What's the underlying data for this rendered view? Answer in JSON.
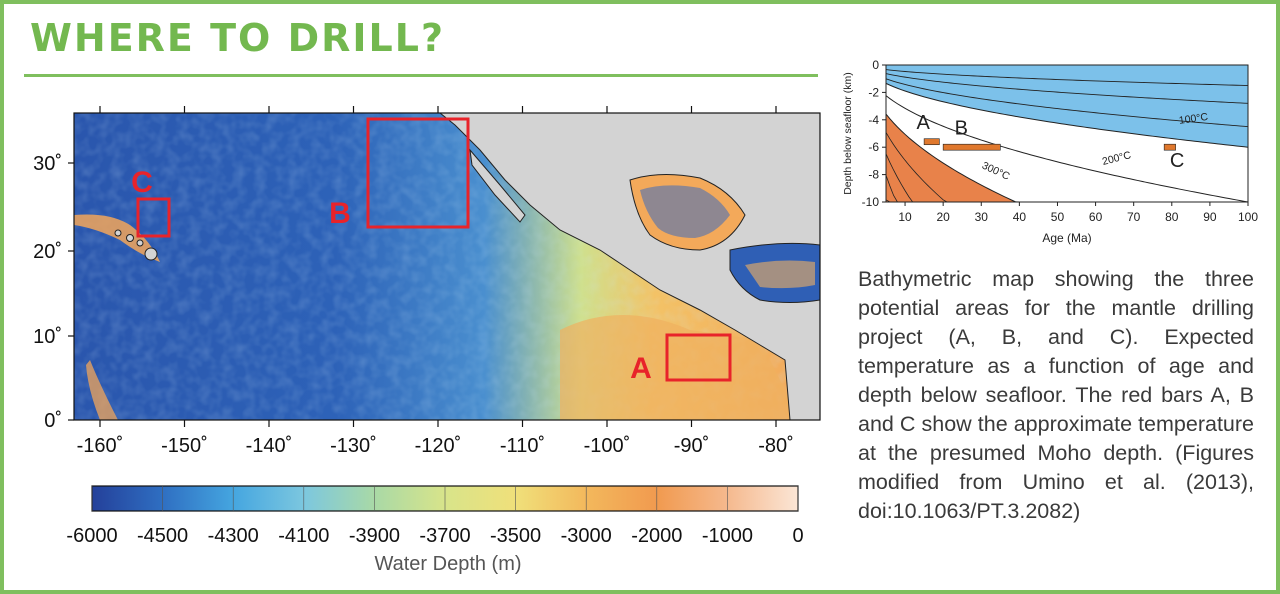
{
  "header": {
    "title": "WHERE TO DRILL?"
  },
  "map": {
    "lat_ticks": [
      "0˚",
      "10˚",
      "20˚",
      "30˚"
    ],
    "lon_ticks": [
      "-160˚",
      "-150˚",
      "-140˚",
      "-130˚",
      "-120˚",
      "-110˚",
      "-100˚",
      "-90˚",
      "-80˚"
    ],
    "sites": [
      {
        "label": "A",
        "color": "#e8232a"
      },
      {
        "label": "B",
        "color": "#e8232a"
      },
      {
        "label": "C",
        "color": "#e8232a"
      }
    ],
    "colorbar": {
      "ticks": [
        "-6000",
        "-4500",
        "-4300",
        "-4100",
        "-3900",
        "-3700",
        "-3500",
        "-3000",
        "-2000",
        "-1000",
        "0"
      ],
      "label": "Water Depth (m)",
      "colors": [
        "#24409a",
        "#2f6fc2",
        "#45a6e0",
        "#7cc7df",
        "#a9d9a6",
        "#d8e48a",
        "#f0e07a",
        "#f3b85c",
        "#f19a4f",
        "#f5b98e",
        "#fbe6d6"
      ]
    }
  },
  "chart_data": {
    "type": "line",
    "xlabel": "Age (Ma)",
    "ylabel": "Depth below seafloor (km)",
    "xlim": [
      5,
      100
    ],
    "ylim": [
      -10,
      0
    ],
    "x_ticks": [
      "10",
      "20",
      "30",
      "40",
      "50",
      "60",
      "70",
      "80",
      "90",
      "100"
    ],
    "y_ticks": [
      "0",
      "-2",
      "-4",
      "-6",
      "-8",
      "-10"
    ],
    "isotherm_labels": [
      "100°C",
      "200°C",
      "300°C"
    ],
    "sites": [
      {
        "label": "A",
        "age_range": [
          15,
          19
        ],
        "depth": -5.6
      },
      {
        "label": "B",
        "age_range": [
          20,
          35
        ],
        "depth": -6.0
      },
      {
        "label": "C",
        "age_range": [
          78,
          81
        ],
        "depth": -6.0
      }
    ],
    "colors": {
      "cool_zone": "#7cc1ea",
      "hot_zone": "#e8824a",
      "bar": "#e0782d"
    }
  },
  "caption": {
    "text": "Bathymetric map showing the three potential areas for the mantle drilling project (A, B, and C). Expected temperature as a function of age and depth below seafloor. The red bars A, B and C show the approximate temperature at the presumed Moho depth. (Figures modified from Umino et al. (2013), doi:10.1063/PT.3.2082)"
  }
}
